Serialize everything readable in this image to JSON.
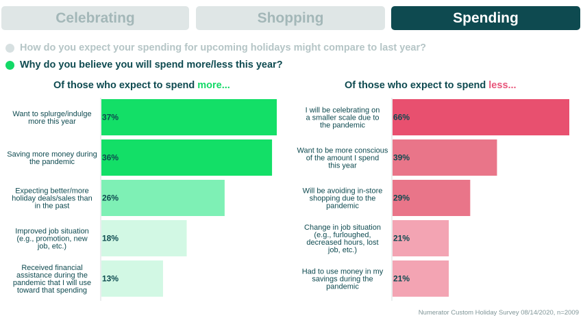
{
  "tabs": [
    {
      "label": "Celebrating",
      "active": false
    },
    {
      "label": "Shopping",
      "active": false
    },
    {
      "label": "Spending",
      "active": true
    }
  ],
  "questions": {
    "q1": "How do you expect your spending for upcoming holidays might compare to last year?",
    "q2": "Why do you believe you will spend more/less this year?"
  },
  "panels": {
    "left_title_prefix": "Of those who expect to spend ",
    "left_title_highlight": "more...",
    "right_title_prefix": "Of those who expect to spend ",
    "right_title_highlight": "less..."
  },
  "source": "Numerator Custom Holiday Survey 08/14/2020, n=2009",
  "colors": {
    "tab_active": "#0e4a50",
    "tab_inactive": "#dfe6e6",
    "more_strong": "#13df67",
    "more_mid": "#7ef0b5",
    "more_light": "#d2f8e4",
    "less_strong": "#e8506f",
    "less_mid": "#e97589",
    "less_light": "#f3a4b3"
  },
  "chart_data": [
    {
      "type": "bar",
      "orientation": "horizontal",
      "title": "Of those who expect to spend more...",
      "categories": [
        "Want to splurge/indulge more this year",
        "Saving more money during the pandemic",
        "Expecting better/more holiday deals/sales than in the past",
        "Improved job situation (e.g., promotion, new job, etc.)",
        "Received financial assistance during the pandemic that I will use toward that spending"
      ],
      "values": [
        37,
        36,
        26,
        18,
        13
      ],
      "value_labels": [
        "37%",
        "36%",
        "26%",
        "18%",
        "13%"
      ],
      "bar_colors": [
        "#13df67",
        "#13df67",
        "#7ef0b5",
        "#d2f8e4",
        "#d2f8e4"
      ],
      "xlim": [
        0,
        37
      ]
    },
    {
      "type": "bar",
      "orientation": "horizontal",
      "title": "Of those who expect to spend less...",
      "categories": [
        "I will be celebrating on a smaller scale due to the pandemic",
        "Want to be more conscious of the amount I spend this year",
        "Will be avoiding in-store shopping due to the pandemic",
        "Change in job situation (e.g., furloughed, decreased hours, lost job, etc.)",
        "Had to use money in my savings during the pandemic"
      ],
      "values": [
        66,
        39,
        29,
        21,
        21
      ],
      "value_labels": [
        "66%",
        "39%",
        "29%",
        "21%",
        "21%"
      ],
      "bar_colors": [
        "#e8506f",
        "#e97589",
        "#e97589",
        "#f3a4b3",
        "#f3a4b3"
      ],
      "xlim": [
        0,
        66
      ]
    }
  ]
}
